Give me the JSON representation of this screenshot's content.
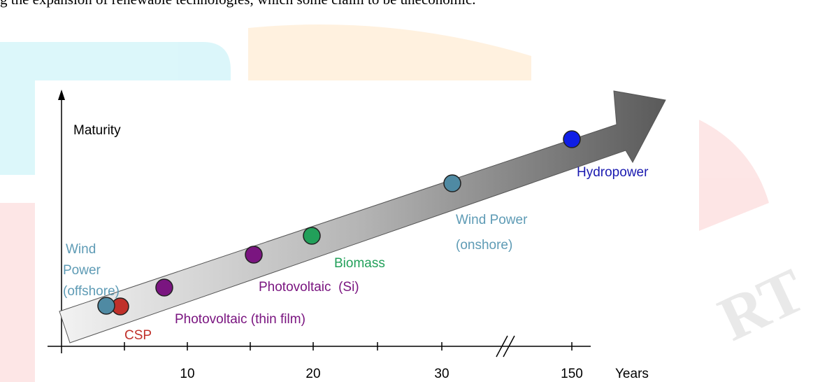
{
  "body_text": "g the expansion of renewable technologies, which some claim to be uneconomic.",
  "figure": {
    "y_axis_label": "Maturity",
    "x_axis_label": "Years",
    "x_ticks": [
      "10",
      "20",
      "30",
      "150"
    ],
    "labels": {
      "wind_offshore": [
        "Wind",
        "Power",
        "(offshore)"
      ],
      "csp": "CSP",
      "pv_thin_film": "Photovoltaic (thin film)",
      "pv_si": "Photovoltaic  (Si)",
      "biomass": "Biomass",
      "wind_onshore": [
        "Wind Power",
        "(onshore)"
      ],
      "hydropower": "Hydropower"
    }
  }
}
